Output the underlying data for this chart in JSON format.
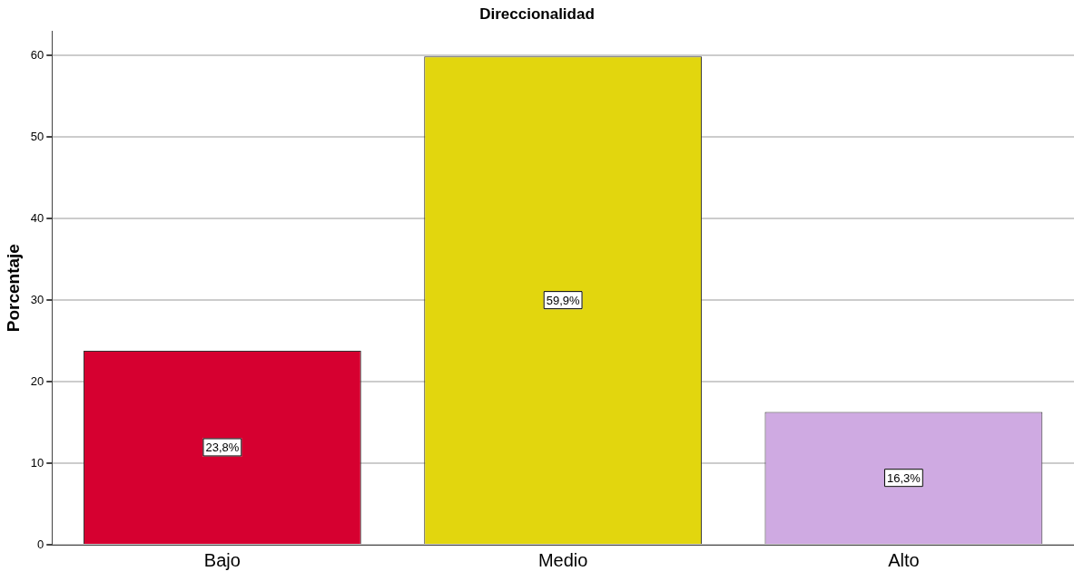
{
  "chart_data": {
    "type": "bar",
    "title": "Direccionalidad",
    "ylabel": "Porcentaje",
    "categories": [
      "Bajo",
      "Medio",
      "Alto"
    ],
    "values": [
      23.8,
      59.9,
      16.3
    ],
    "colors": [
      "#d60030",
      "#e2d60e",
      "#cfaae2"
    ],
    "value_labels": [
      "23,8%",
      "59,9%",
      "16,3%"
    ],
    "ylim": [
      0,
      63
    ],
    "yticks": [
      0,
      10,
      20,
      30,
      40,
      50,
      60
    ],
    "grid": "y",
    "legend": false
  }
}
